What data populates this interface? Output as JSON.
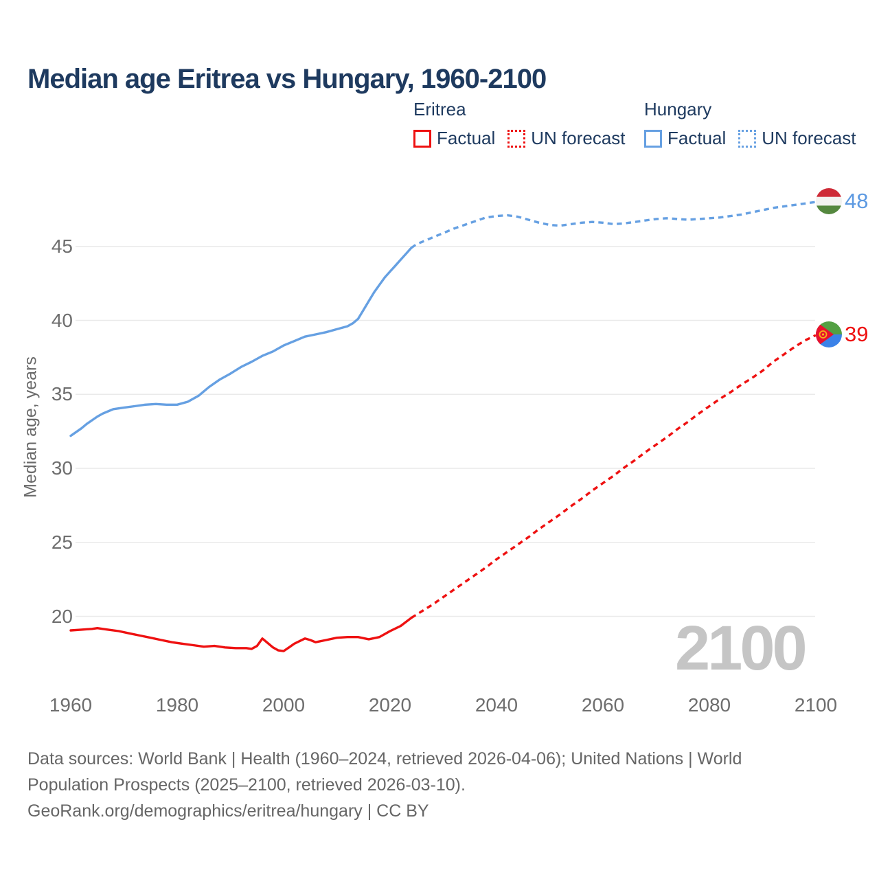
{
  "title": "Median age Eritrea vs Hungary, 1960-2100",
  "legend": {
    "eritrea": {
      "header": "Eritrea",
      "factual_label": "Factual",
      "forecast_label": "UN forecast"
    },
    "hungary": {
      "header": "Hungary",
      "factual_label": "Factual",
      "forecast_label": "UN forecast"
    }
  },
  "footer": {
    "line1": "Data sources: World Bank | Health (1960–2024, retrieved 2026-04-06); United Nations | World",
    "line2": "Population Prospects (2025–2100, retrieved 2026-03-10).",
    "line3": "GeoRank.org/demographics/eritrea/hungary | CC BY"
  },
  "colors": {
    "eritrea_line": "#ee1111",
    "hungary_line": "#66a0e2",
    "gridline": "#eaeaea",
    "tick_text": "#6e6e6e",
    "title_text": "#1e3a5f",
    "watermark_text": "#c5c5c5"
  },
  "chart_data": {
    "type": "line",
    "title": "Median age Eritrea vs Hungary, 1960-2100",
    "xlabel": "",
    "ylabel": "Median age, years",
    "xlim": [
      1960,
      2100
    ],
    "ylim": [
      17,
      49
    ],
    "x_ticks": [
      1960,
      1980,
      2000,
      2020,
      2040,
      2060,
      2080,
      2100
    ],
    "y_ticks": [
      20,
      25,
      30,
      35,
      40,
      45
    ],
    "grid": "horizontal",
    "legend_position": "top",
    "watermark": "2100",
    "series": [
      {
        "name": "Hungary Factual",
        "style": "solid",
        "color": "#66a0e2",
        "points": [
          [
            1960,
            32.2
          ],
          [
            1961,
            32.45
          ],
          [
            1962,
            32.7
          ],
          [
            1963,
            33.0
          ],
          [
            1964,
            33.25
          ],
          [
            1965,
            33.5
          ],
          [
            1966,
            33.7
          ],
          [
            1967,
            33.85
          ],
          [
            1968,
            34.0
          ],
          [
            1970,
            34.1
          ],
          [
            1972,
            34.2
          ],
          [
            1974,
            34.3
          ],
          [
            1976,
            34.35
          ],
          [
            1978,
            34.3
          ],
          [
            1980,
            34.3
          ],
          [
            1982,
            34.5
          ],
          [
            1984,
            34.9
          ],
          [
            1986,
            35.5
          ],
          [
            1988,
            36.0
          ],
          [
            1990,
            36.4
          ],
          [
            1992,
            36.85
          ],
          [
            1994,
            37.2
          ],
          [
            1996,
            37.6
          ],
          [
            1998,
            37.9
          ],
          [
            2000,
            38.3
          ],
          [
            2002,
            38.6
          ],
          [
            2004,
            38.9
          ],
          [
            2006,
            39.05
          ],
          [
            2008,
            39.2
          ],
          [
            2010,
            39.4
          ],
          [
            2012,
            39.6
          ],
          [
            2013,
            39.8
          ],
          [
            2014,
            40.1
          ],
          [
            2015,
            40.7
          ],
          [
            2016,
            41.3
          ],
          [
            2017,
            41.9
          ],
          [
            2018,
            42.4
          ],
          [
            2019,
            42.9
          ],
          [
            2020,
            43.3
          ],
          [
            2021,
            43.7
          ],
          [
            2022,
            44.1
          ],
          [
            2023,
            44.5
          ],
          [
            2024,
            44.9
          ]
        ]
      },
      {
        "name": "Hungary UN forecast",
        "style": "dashed",
        "color": "#66a0e2",
        "points": [
          [
            2024,
            44.9
          ],
          [
            2025,
            45.15
          ],
          [
            2026,
            45.3
          ],
          [
            2028,
            45.6
          ],
          [
            2030,
            45.9
          ],
          [
            2032,
            46.2
          ],
          [
            2034,
            46.45
          ],
          [
            2036,
            46.7
          ],
          [
            2038,
            46.95
          ],
          [
            2040,
            47.05
          ],
          [
            2042,
            47.1
          ],
          [
            2044,
            47.0
          ],
          [
            2046,
            46.8
          ],
          [
            2048,
            46.6
          ],
          [
            2050,
            46.45
          ],
          [
            2052,
            46.4
          ],
          [
            2054,
            46.5
          ],
          [
            2056,
            46.6
          ],
          [
            2058,
            46.65
          ],
          [
            2060,
            46.6
          ],
          [
            2062,
            46.5
          ],
          [
            2064,
            46.55
          ],
          [
            2066,
            46.65
          ],
          [
            2068,
            46.75
          ],
          [
            2070,
            46.85
          ],
          [
            2072,
            46.9
          ],
          [
            2074,
            46.85
          ],
          [
            2076,
            46.8
          ],
          [
            2078,
            46.85
          ],
          [
            2080,
            46.9
          ],
          [
            2082,
            46.95
          ],
          [
            2084,
            47.05
          ],
          [
            2086,
            47.15
          ],
          [
            2088,
            47.3
          ],
          [
            2090,
            47.45
          ],
          [
            2092,
            47.6
          ],
          [
            2094,
            47.7
          ],
          [
            2096,
            47.8
          ],
          [
            2098,
            47.9
          ],
          [
            2100,
            48.0
          ]
        ]
      },
      {
        "name": "Eritrea Factual",
        "style": "solid",
        "color": "#ee1111",
        "points": [
          [
            1960,
            19.05
          ],
          [
            1962,
            19.1
          ],
          [
            1964,
            19.15
          ],
          [
            1965,
            19.2
          ],
          [
            1967,
            19.1
          ],
          [
            1969,
            19.0
          ],
          [
            1971,
            18.85
          ],
          [
            1973,
            18.7
          ],
          [
            1975,
            18.55
          ],
          [
            1977,
            18.4
          ],
          [
            1979,
            18.25
          ],
          [
            1981,
            18.15
          ],
          [
            1983,
            18.05
          ],
          [
            1985,
            17.95
          ],
          [
            1987,
            18.0
          ],
          [
            1989,
            17.9
          ],
          [
            1991,
            17.85
          ],
          [
            1993,
            17.85
          ],
          [
            1994,
            17.8
          ],
          [
            1995,
            18.0
          ],
          [
            1996,
            18.5
          ],
          [
            1997,
            18.2
          ],
          [
            1998,
            17.9
          ],
          [
            1999,
            17.7
          ],
          [
            2000,
            17.65
          ],
          [
            2001,
            17.9
          ],
          [
            2002,
            18.15
          ],
          [
            2004,
            18.5
          ],
          [
            2005,
            18.4
          ],
          [
            2006,
            18.25
          ],
          [
            2008,
            18.4
          ],
          [
            2010,
            18.55
          ],
          [
            2012,
            18.6
          ],
          [
            2014,
            18.6
          ],
          [
            2016,
            18.45
          ],
          [
            2018,
            18.6
          ],
          [
            2020,
            19.0
          ],
          [
            2022,
            19.35
          ],
          [
            2024,
            19.9
          ]
        ]
      },
      {
        "name": "Eritrea UN forecast",
        "style": "dashed",
        "color": "#ee1111",
        "points": [
          [
            2024,
            19.9
          ],
          [
            2026,
            20.35
          ],
          [
            2028,
            20.8
          ],
          [
            2030,
            21.3
          ],
          [
            2032,
            21.8
          ],
          [
            2034,
            22.3
          ],
          [
            2036,
            22.8
          ],
          [
            2038,
            23.3
          ],
          [
            2040,
            23.85
          ],
          [
            2042,
            24.35
          ],
          [
            2044,
            24.85
          ],
          [
            2046,
            25.35
          ],
          [
            2048,
            25.9
          ],
          [
            2050,
            26.4
          ],
          [
            2052,
            26.9
          ],
          [
            2054,
            27.45
          ],
          [
            2056,
            27.95
          ],
          [
            2058,
            28.5
          ],
          [
            2060,
            29.0
          ],
          [
            2062,
            29.5
          ],
          [
            2064,
            30.05
          ],
          [
            2066,
            30.55
          ],
          [
            2068,
            31.1
          ],
          [
            2070,
            31.6
          ],
          [
            2072,
            32.1
          ],
          [
            2074,
            32.65
          ],
          [
            2076,
            33.15
          ],
          [
            2078,
            33.7
          ],
          [
            2080,
            34.2
          ],
          [
            2082,
            34.7
          ],
          [
            2084,
            35.15
          ],
          [
            2086,
            35.65
          ],
          [
            2088,
            36.1
          ],
          [
            2090,
            36.6
          ],
          [
            2092,
            37.2
          ],
          [
            2094,
            37.7
          ],
          [
            2096,
            38.2
          ],
          [
            2098,
            38.65
          ],
          [
            2100,
            39.0
          ]
        ]
      }
    ],
    "end_labels": [
      {
        "series": "Hungary",
        "value": "48",
        "color": "#5d9ae2",
        "flag": "hungary-flag"
      },
      {
        "series": "Eritrea",
        "value": "39",
        "color": "#ee1111",
        "flag": "eritrea-flag"
      }
    ]
  }
}
